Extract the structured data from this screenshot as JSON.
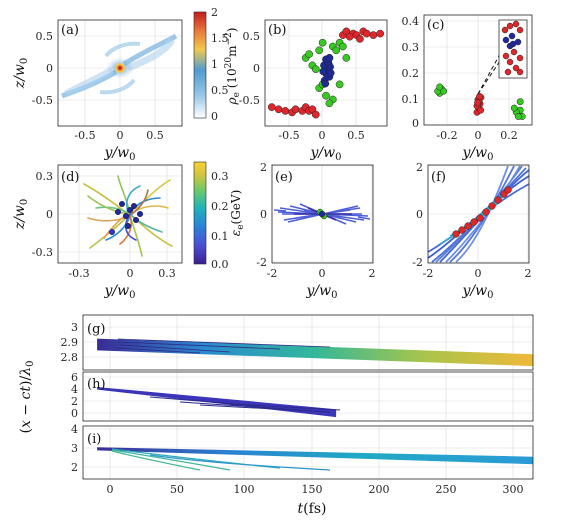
{
  "colors": {
    "red": "#e0262a",
    "green": "#38c922",
    "blue": "#1f2a9a",
    "lines_blue": "#4e73d8",
    "density_map": [
      "#ffffff",
      "#9ecae8",
      "#4f9bd0",
      "#f2c94c",
      "#e8783a",
      "#c21d1d"
    ],
    "energy_map": [
      "#3b1e8f",
      "#4a4ed6",
      "#2b86d8",
      "#20b3b8",
      "#6dc96a",
      "#d4c63a",
      "#f5d234"
    ]
  },
  "chart_data": [
    {
      "panel": "(a)",
      "type": "heatmap",
      "xlabel": "y/w_0",
      "ylabel": "z/w_0",
      "xticks": [
        "-0.5",
        "0",
        "0.5"
      ],
      "yticks": [
        "0.5",
        "0",
        "-0.5"
      ],
      "xlim": [
        -0.9,
        0.9
      ],
      "ylim": [
        -0.7,
        0.7
      ],
      "colorbar": {
        "label": "ρ_e (10^20 m^-2)",
        "ticks": [
          "2",
          "1.5",
          "1",
          "0.5",
          "0"
        ],
        "range": [
          0,
          2
        ]
      }
    },
    {
      "panel": "(b)",
      "type": "scatter",
      "xlabel": "y/w_0",
      "ylabel": "",
      "xticks": [
        "-0.5",
        "0",
        "0.5"
      ],
      "yticks": [
        "0.5",
        "0",
        "-0.5"
      ],
      "xlim": [
        -0.9,
        0.9
      ],
      "ylim": [
        -0.7,
        0.7
      ],
      "series": [
        {
          "color": "red",
          "points": [
            [
              -0.8,
              -0.45
            ],
            [
              -0.7,
              -0.48
            ],
            [
              -0.6,
              -0.5
            ],
            [
              -0.5,
              -0.52
            ],
            [
              -0.45,
              -0.48
            ],
            [
              -0.35,
              -0.5
            ],
            [
              -0.3,
              -0.45
            ],
            [
              -0.25,
              -0.5
            ],
            [
              -0.2,
              -0.48
            ],
            [
              -0.15,
              -0.55
            ],
            [
              0.25,
              0.5
            ],
            [
              0.3,
              0.55
            ],
            [
              0.4,
              0.52
            ],
            [
              0.45,
              0.5
            ],
            [
              0.55,
              0.55
            ],
            [
              0.6,
              0.52
            ],
            [
              0.7,
              0.5
            ],
            [
              0.8,
              0.52
            ],
            [
              0.35,
              0.48
            ],
            [
              0.5,
              0.45
            ]
          ]
        },
        {
          "color": "green",
          "points": [
            [
              -0.3,
              0.2
            ],
            [
              -0.25,
              0.25
            ],
            [
              -0.2,
              0.1
            ],
            [
              -0.15,
              0.05
            ],
            [
              -0.1,
              -0.2
            ],
            [
              -0.05,
              -0.15
            ],
            [
              0.05,
              0.2
            ],
            [
              0.1,
              0.35
            ],
            [
              0.15,
              0.3
            ],
            [
              0.2,
              0.4
            ],
            [
              0.25,
              0.35
            ],
            [
              0.1,
              -0.35
            ],
            [
              0.05,
              -0.4
            ],
            [
              -0.05,
              0.4
            ],
            [
              0,
              -0.3
            ],
            [
              0.3,
              0.2
            ],
            [
              0.2,
              -0.15
            ],
            [
              -0.1,
              0.3
            ]
          ]
        },
        {
          "color": "blue",
          "points": [
            [
              0,
              0
            ],
            [
              0.02,
              0.05
            ],
            [
              -0.03,
              0.1
            ],
            [
              0.05,
              -0.05
            ],
            [
              0.04,
              0.12
            ],
            [
              -0.02,
              -0.1
            ],
            [
              0.06,
              0.08
            ],
            [
              0.01,
              -0.02
            ],
            [
              -0.04,
              0.02
            ],
            [
              0.03,
              0.15
            ],
            [
              0.07,
              0
            ],
            [
              0,
              0.18
            ],
            [
              -0.01,
              -0.14
            ],
            [
              0.05,
              0.2
            ]
          ]
        }
      ]
    },
    {
      "panel": "(c)",
      "type": "scatter",
      "xlabel": "y/w_0",
      "ylabel": "",
      "xticks": [
        "-0.2",
        "0",
        "0.2"
      ],
      "yticks": [
        "0.4",
        "0.3",
        "0.2",
        "0.1",
        "0"
      ],
      "xlim": [
        -0.28,
        0.27
      ],
      "ylim": [
        -0.1,
        0.42
      ],
      "series": [
        {
          "color": "red",
          "points": [
            [
              -0.01,
              -0.04
            ],
            [
              0,
              -0.02
            ],
            [
              0.005,
              0
            ],
            [
              -0.005,
              0.02
            ],
            [
              0.01,
              0.03
            ],
            [
              0,
              0.01
            ],
            [
              -0.01,
              -0.01
            ],
            [
              0.008,
              -0.03
            ],
            [
              0.003,
              0.035
            ],
            [
              -0.007,
              0.005
            ]
          ]
        },
        {
          "color": "green",
          "points": [
            [
              -0.2,
              0.05
            ],
            [
              -0.19,
              0.07
            ],
            [
              -0.18,
              0.06
            ],
            [
              -0.21,
              0.06
            ],
            [
              -0.2,
              0.08
            ],
            [
              0.2,
              -0.05
            ],
            [
              0.21,
              -0.03
            ],
            [
              0.19,
              -0.04
            ],
            [
              0.22,
              -0.06
            ],
            [
              0.18,
              -0.02
            ],
            [
              0.2,
              -0.06
            ],
            [
              0.21,
              0.01
            ]
          ]
        }
      ]
    },
    {
      "panel": "(d)",
      "type": "line",
      "xlabel": "y/w_0",
      "ylabel": "z/w_0",
      "xticks": [
        "-0.3",
        "0",
        "0.3"
      ],
      "yticks": [
        "0.3",
        "0",
        "-0.3"
      ],
      "xlim": [
        -0.4,
        0.4
      ],
      "ylim": [
        -0.4,
        0.4
      ],
      "colorbar": {
        "label": "ε_e (GeV)",
        "ticks": [
          "0.3",
          "0.2",
          "0.1",
          "0.0"
        ],
        "range": [
          0,
          0.35
        ]
      }
    },
    {
      "panel": "(e)",
      "type": "line",
      "xlabel": "y/w_0",
      "ylabel": "",
      "xticks": [
        "-2",
        "0",
        "2"
      ],
      "yticks": [
        "2",
        "0",
        "-2"
      ],
      "xlim": [
        -2,
        2
      ],
      "ylim": [
        -2,
        2
      ]
    },
    {
      "panel": "(f)",
      "type": "line",
      "xlabel": "y/w_0",
      "ylabel": "",
      "xticks": [
        "-2",
        "0",
        "2"
      ],
      "yticks": [
        "2",
        "0",
        "-2"
      ],
      "xlim": [
        -2,
        2
      ],
      "ylim": [
        -2,
        2
      ]
    },
    {
      "panel": "(g)",
      "type": "line",
      "xlabel": "",
      "ylabel": "",
      "xlim": [
        -10,
        310
      ],
      "ylim": [
        2.77,
        3.05
      ],
      "yticks": [
        "3",
        "2.9",
        "2.8"
      ],
      "band": {
        "t": [
          0,
          310
        ],
        "top": [
          2.93,
          2.85
        ],
        "bottom": [
          2.87,
          2.79
        ]
      }
    },
    {
      "panel": "(h)",
      "type": "line",
      "xlabel": "",
      "ylabel": "",
      "xlim": [
        -10,
        310
      ],
      "ylim": [
        -1,
        6.5
      ],
      "yticks": [
        "6",
        "4",
        "2",
        "0"
      ],
      "band": {
        "t": [
          0,
          170
        ],
        "top": [
          4.2,
          0.8
        ],
        "bottom": [
          3.8,
          -0.4
        ]
      }
    },
    {
      "panel": "(i)",
      "type": "line",
      "xlabel": "t(fs)",
      "ylabel": "(x - ct)/λ_0",
      "xlim": [
        -10,
        310
      ],
      "ylim": [
        1.5,
        4
      ],
      "xticks": [
        "0",
        "50",
        "100",
        "150",
        "200",
        "250",
        "300"
      ],
      "yticks": [
        "4",
        "3",
        "2"
      ],
      "band": {
        "t": [
          0,
          310
        ],
        "top": [
          3.0,
          2.55
        ],
        "bottom": [
          2.85,
          2.2
        ]
      }
    }
  ]
}
